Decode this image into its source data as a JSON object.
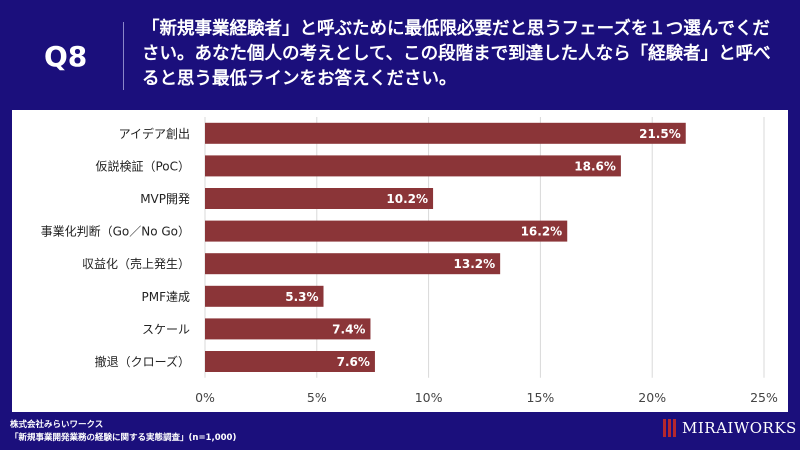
{
  "header": {
    "question_number": "Q8",
    "question_text": "「新規事業経験者」と呼ぶために最低限必要だと思うフェーズを１つ選んでください。あなた個人の考えとして、この段階まで到達した人なら「経験者」と呼べると思う最低ラインをお答えください。"
  },
  "chart_data": {
    "type": "bar",
    "orientation": "horizontal",
    "categories": [
      "アイデア創出",
      "仮説検証（PoC）",
      "MVP開発",
      "事業化判断（Go／No Go）",
      "収益化（売上発生）",
      "PMF達成",
      "スケール",
      "撤退（クローズ）"
    ],
    "values": [
      21.5,
      18.6,
      10.2,
      16.2,
      13.2,
      5.3,
      7.4,
      7.6
    ],
    "data_labels": [
      "21.5%",
      "18.6%",
      "10.2%",
      "16.2%",
      "13.2%",
      "5.3%",
      "7.4%",
      "7.6%"
    ],
    "xlim": [
      0,
      25
    ],
    "x_ticks": [
      0,
      5,
      10,
      15,
      20,
      25
    ],
    "x_tick_labels": [
      "0%",
      "5%",
      "10%",
      "15%",
      "20%",
      "25%"
    ],
    "grid": true,
    "bar_color": "#8b3538"
  },
  "footer": {
    "company": "株式会社みらいワークス",
    "source": "「新規事業開発業務の経験に関する実態調査」(n=1,000)",
    "logo_text": "MIRAIWORKS"
  },
  "colors": {
    "background": "#1b0f7c",
    "logo_accent": "#b5282e"
  }
}
